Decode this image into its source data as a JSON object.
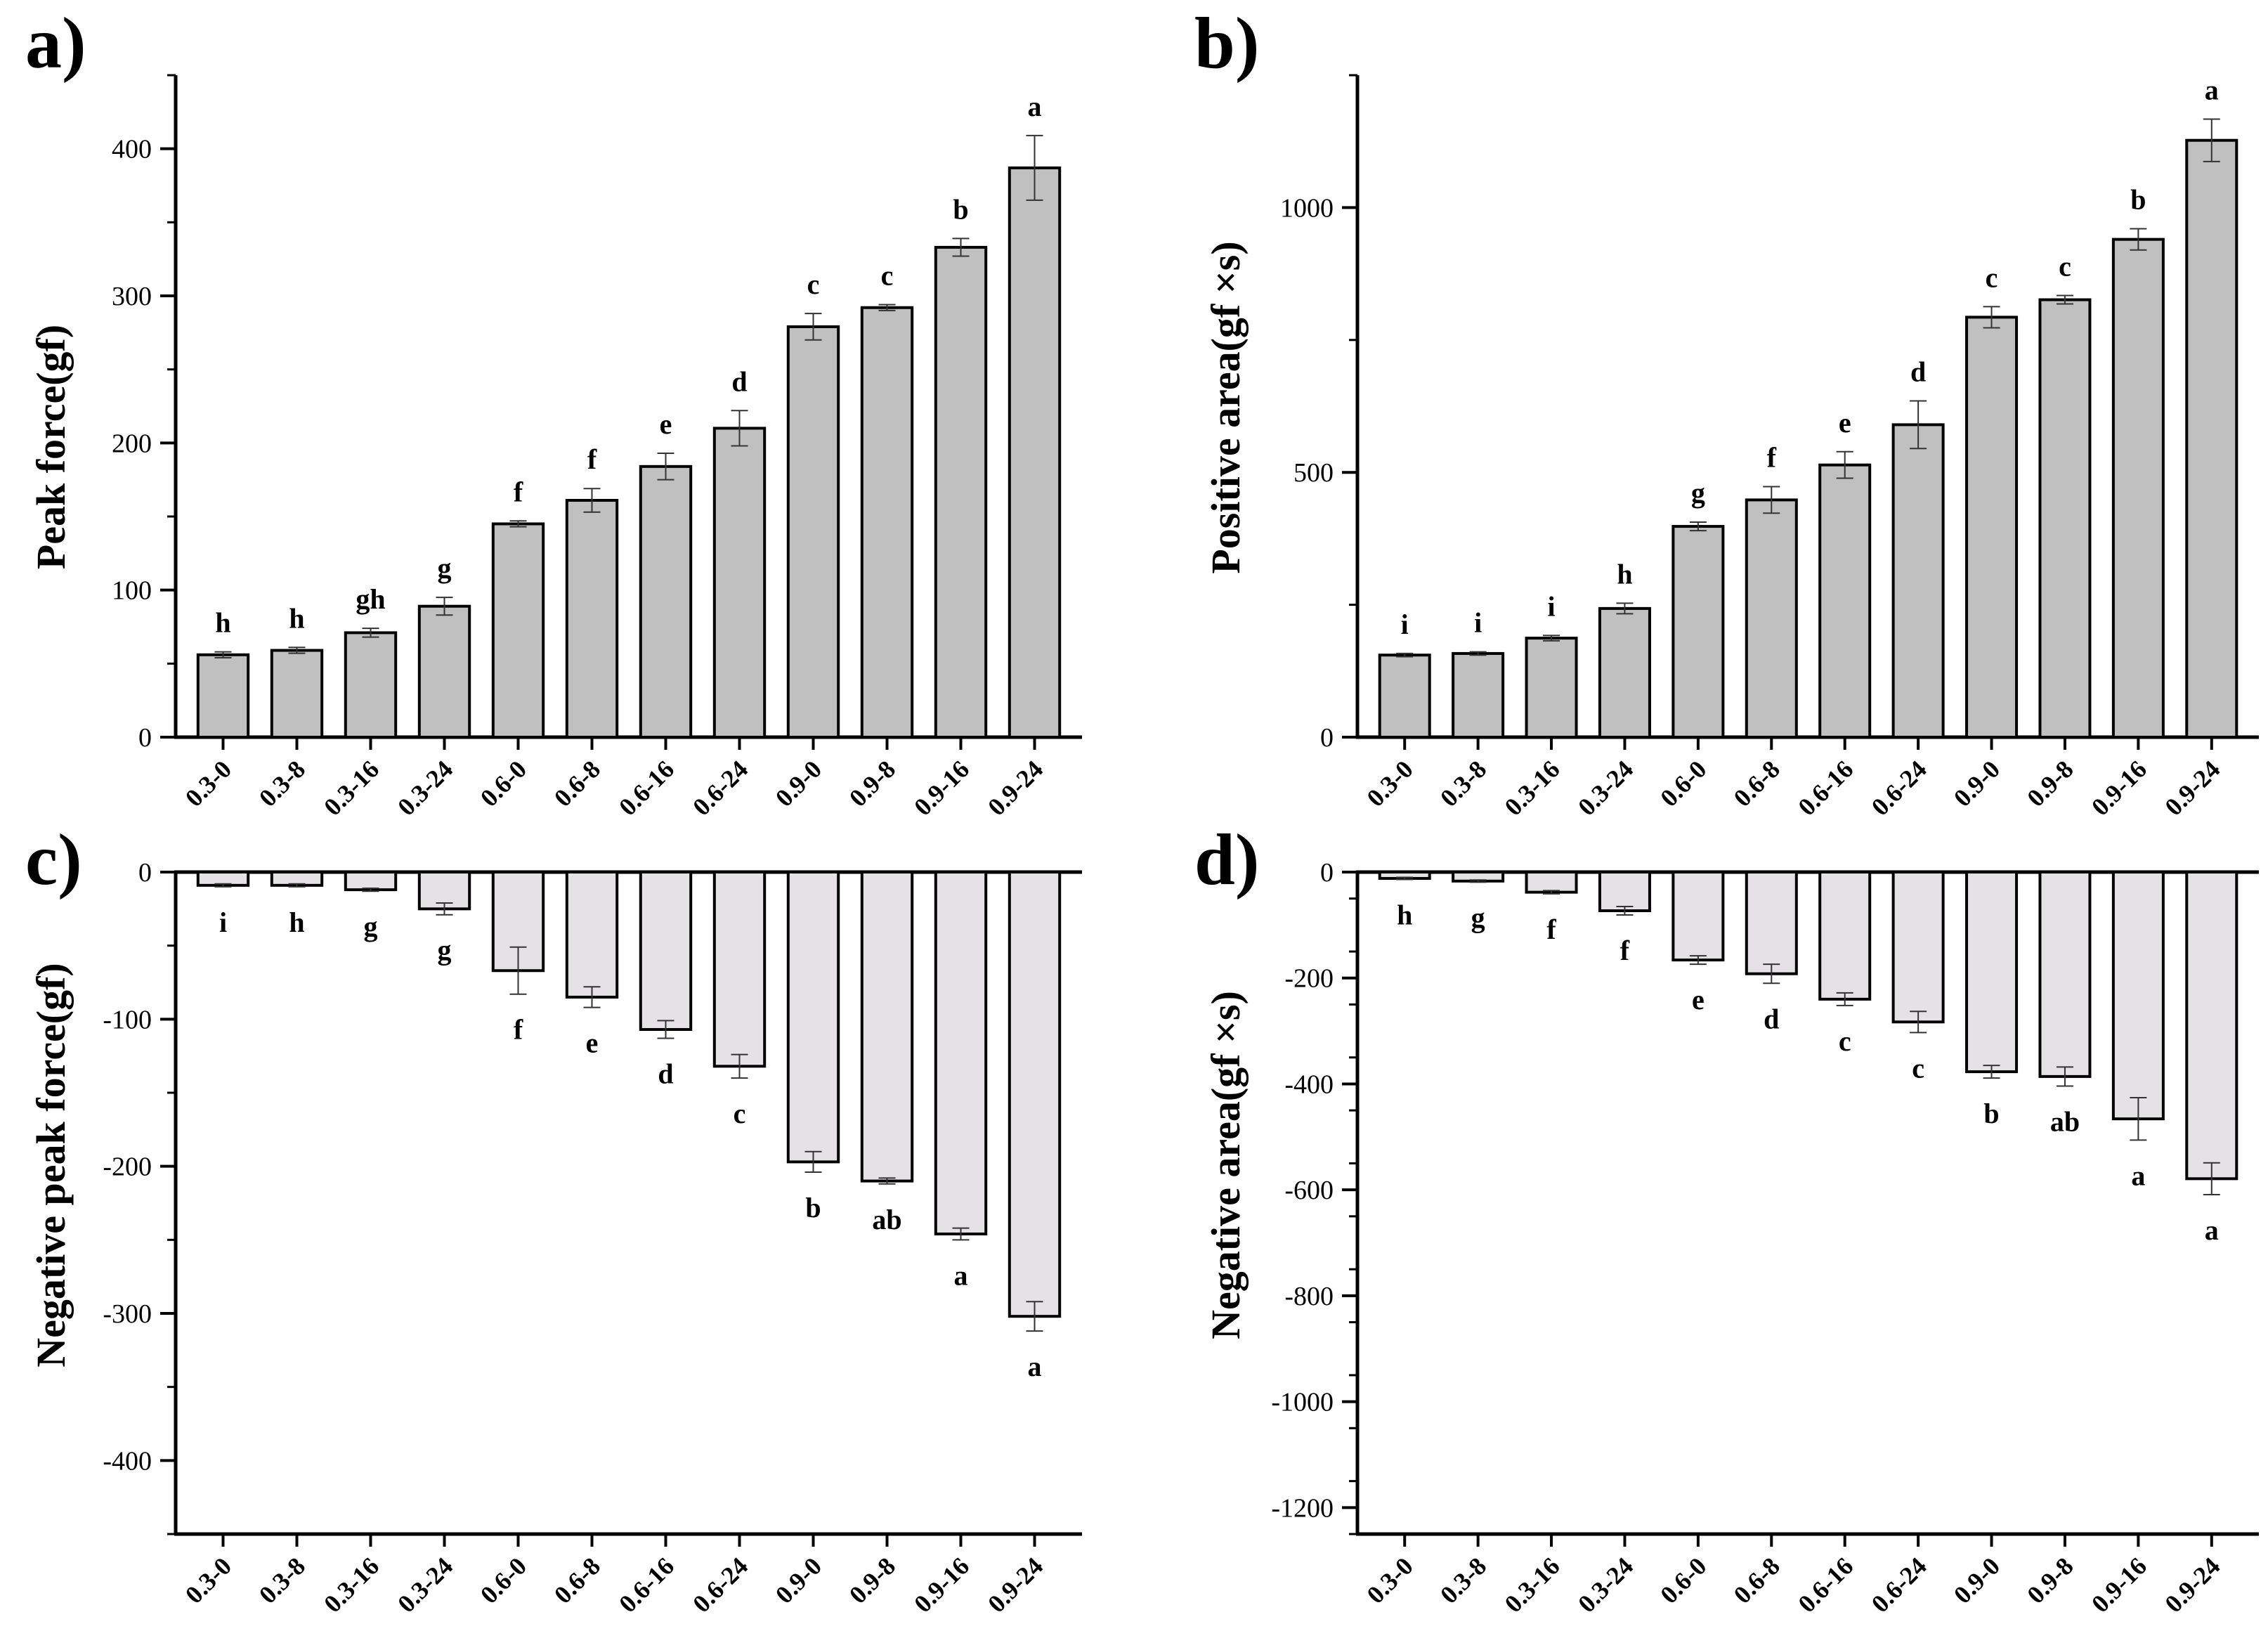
{
  "chart_data": [
    {
      "type": "bar",
      "panel": "a)",
      "title": "",
      "xlabel": "",
      "ylabel": "Peak force(gf)",
      "ylim": [
        0,
        450
      ],
      "yticks": [
        0,
        100,
        200,
        300,
        400
      ],
      "categories": [
        "0.3-0",
        "0.3-8",
        "0.3-16",
        "0.3-24",
        "0.6-0",
        "0.6-8",
        "0.6-16",
        "0.6-24",
        "0.9-0",
        "0.9-8",
        "0.9-16",
        "0.9-24"
      ],
      "values": [
        56,
        59,
        71,
        89,
        145,
        161,
        184,
        210,
        279,
        292,
        333,
        387
      ],
      "errors": [
        2,
        2,
        3,
        6,
        2,
        8,
        9,
        12,
        9,
        2,
        6,
        22
      ],
      "significance": [
        "h",
        "h",
        "gh",
        "g",
        "f",
        "f",
        "e",
        "d",
        "c",
        "c",
        "b",
        "a"
      ],
      "bar_color": "#c0c0c0"
    },
    {
      "type": "bar",
      "panel": "b)",
      "title": "",
      "xlabel": "",
      "ylabel": "Positive area(gf ×s)",
      "ylim": [
        0,
        1250
      ],
      "yticks": [
        0,
        500,
        1000
      ],
      "categories": [
        "0.3-0",
        "0.3-8",
        "0.3-16",
        "0.3-24",
        "0.6-0",
        "0.6-8",
        "0.6-16",
        "0.6-24",
        "0.9-0",
        "0.9-8",
        "0.9-16",
        "0.9-24"
      ],
      "values": [
        155,
        158,
        187,
        243,
        398,
        448,
        514,
        590,
        793,
        826,
        940,
        1127
      ],
      "errors": [
        3,
        3,
        5,
        10,
        8,
        25,
        25,
        45,
        20,
        8,
        20,
        40
      ],
      "significance": [
        "i",
        "i",
        "i",
        "h",
        "g",
        "f",
        "e",
        "d",
        "c",
        "c",
        "b",
        "a"
      ],
      "bar_color": "#c0c0c0"
    },
    {
      "type": "bar",
      "panel": "c)",
      "title": "",
      "xlabel": "",
      "ylabel": "Negative peak force(gf)",
      "ylim": [
        -450,
        0
      ],
      "yticks": [
        0,
        -100,
        -200,
        -300,
        -400
      ],
      "categories": [
        "0.3-0",
        "0.3-8",
        "0.3-16",
        "0.3-24",
        "0.6-0",
        "0.6-8",
        "0.6-16",
        "0.6-24",
        "0.9-0",
        "0.9-8",
        "0.9-16",
        "0.9-24"
      ],
      "values": [
        -9,
        -9,
        -12,
        -25,
        -67,
        -85,
        -107,
        -132,
        -197,
        -210,
        -246,
        -302
      ],
      "errors": [
        1,
        1,
        1,
        4,
        16,
        7,
        6,
        8,
        7,
        2,
        4,
        10
      ],
      "significance": [
        "i",
        "h",
        "g",
        "g",
        "f",
        "e",
        "d",
        "c",
        "b",
        "ab",
        "a",
        "a"
      ],
      "bar_color": "#e4e2e4"
    },
    {
      "type": "bar",
      "panel": "d)",
      "title": "",
      "xlabel": "",
      "ylabel": "Negative area(gf ×s)",
      "ylim": [
        -1250,
        0
      ],
      "yticks": [
        0,
        -200,
        -400,
        -600,
        -800,
        -1000,
        -1200
      ],
      "categories": [
        "0.3-0",
        "0.3-8",
        "0.3-16",
        "0.3-24",
        "0.6-0",
        "0.6-8",
        "0.6-16",
        "0.6-24",
        "0.9-0",
        "0.9-8",
        "0.9-16",
        "0.9-24"
      ],
      "values": [
        -12,
        -17,
        -38,
        -73,
        -166,
        -192,
        -240,
        -283,
        -377,
        -386,
        -466,
        -579
      ],
      "errors": [
        2,
        2,
        3,
        8,
        8,
        18,
        12,
        20,
        12,
        18,
        40,
        30
      ],
      "significance": [
        "h",
        "g",
        "f",
        "f",
        "e",
        "d",
        "c",
        "c",
        "b",
        "ab",
        "a",
        "a"
      ],
      "bar_color": "#e4e2e4"
    }
  ]
}
